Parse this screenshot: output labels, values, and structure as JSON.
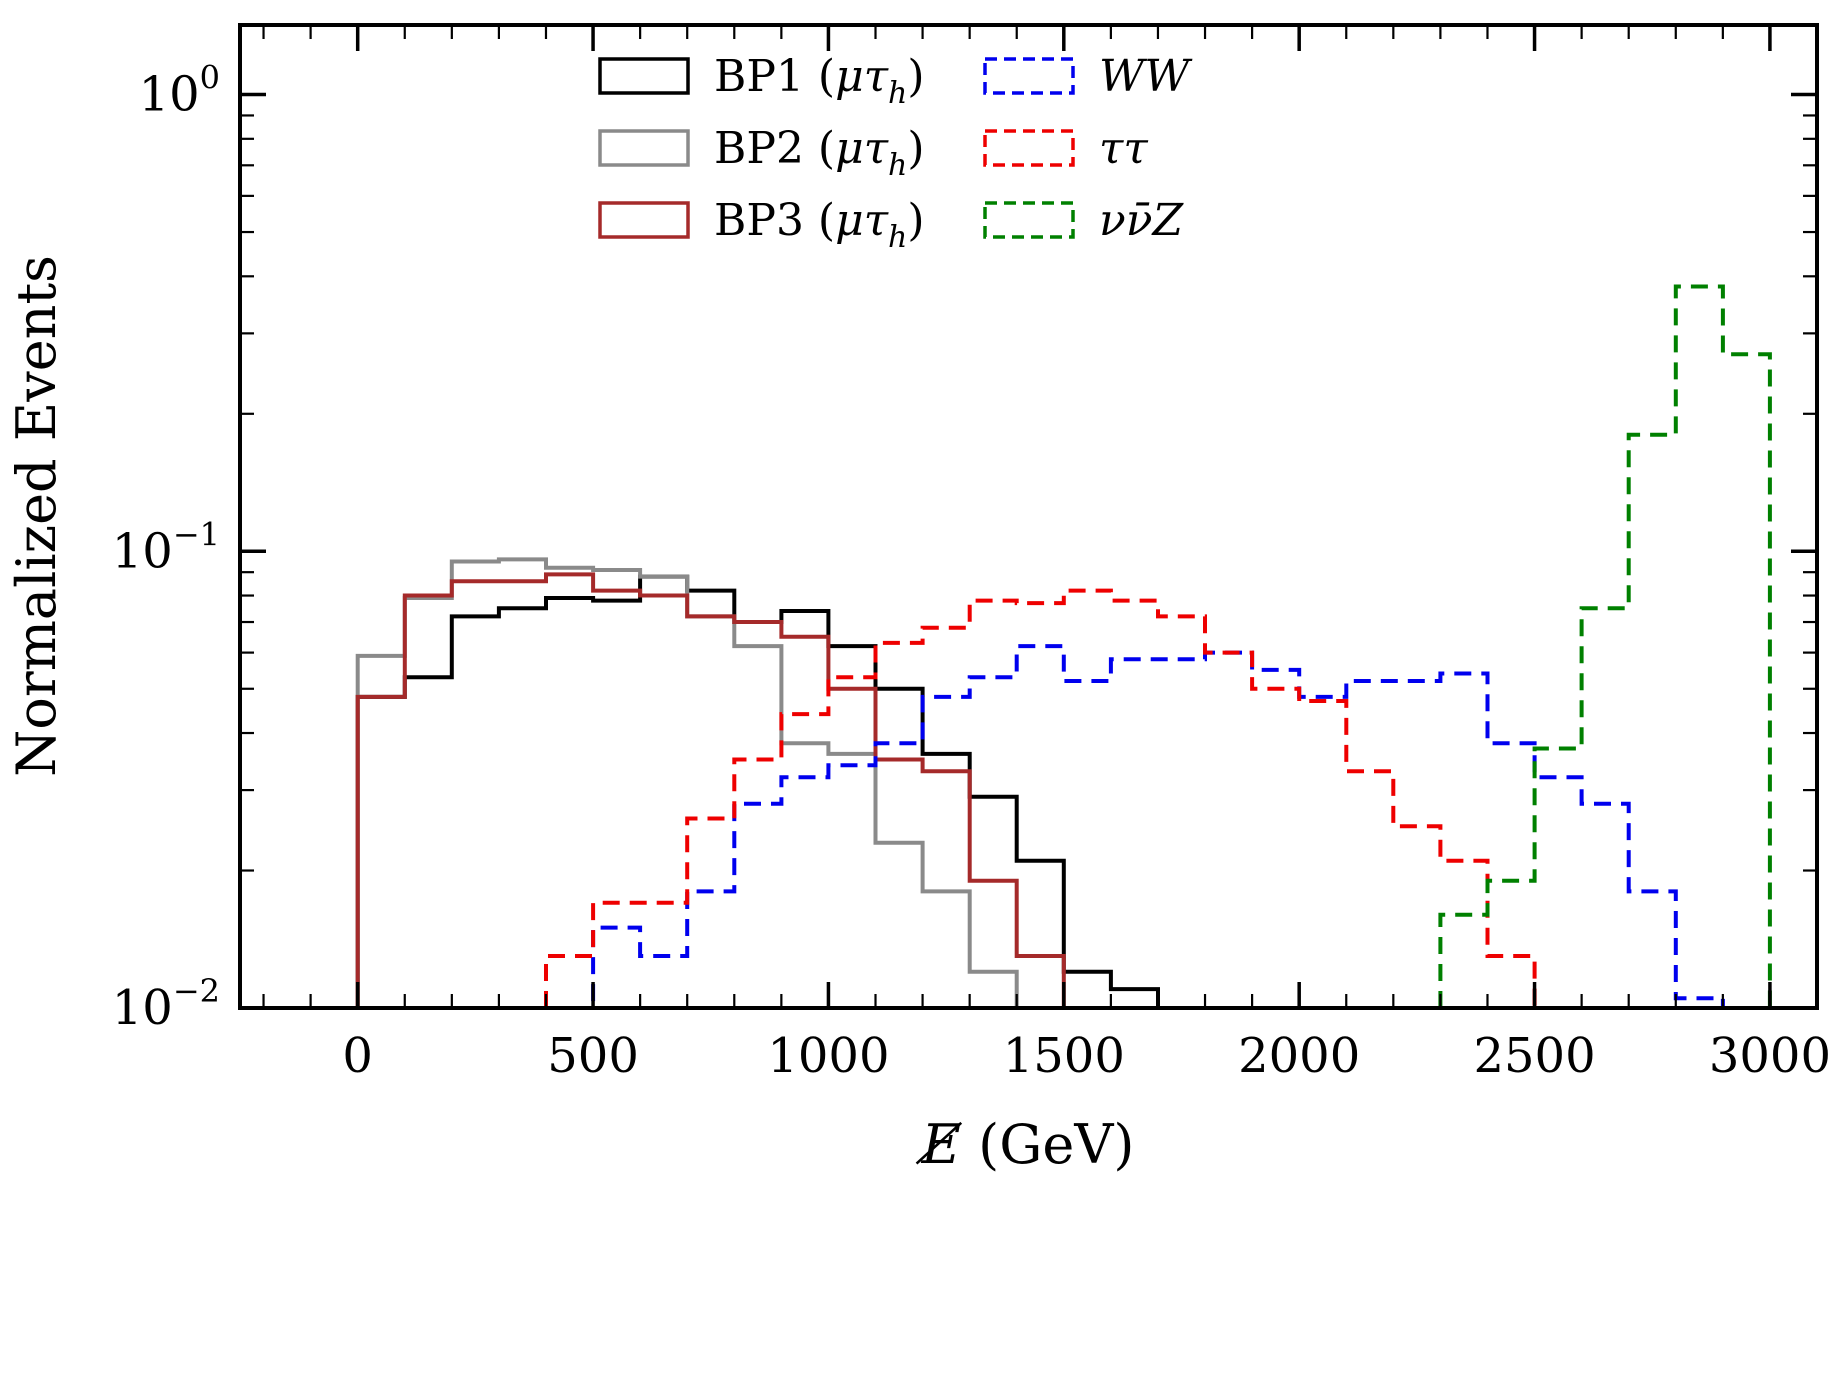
{
  "chart_data": {
    "type": "line",
    "line_style": "step-histogram",
    "title": "",
    "xlabel": "E̸ (GeV)",
    "ylabel": "Normalized Events",
    "x_scale": "linear",
    "y_scale": "log",
    "xlim": [
      -250,
      3100
    ],
    "ylim": [
      0.01,
      1.42
    ],
    "x_major_ticks": [
      0,
      500,
      1000,
      1500,
      2000,
      2500,
      3000
    ],
    "x_minor_step": 100,
    "y_major_ticks": [
      {
        "value": 1,
        "base": "10",
        "exp": "0"
      },
      {
        "value": 0.1,
        "base": "10",
        "exp": "−1"
      },
      {
        "value": 0.01,
        "base": "10",
        "exp": "−2"
      }
    ],
    "grid": false,
    "bin_width": 100,
    "colors": {
      "frame": "#000000",
      "background": "#ffffff"
    },
    "legend": {
      "position": "upper-center-inside",
      "columns": [
        [
          "BP1",
          "BP2",
          "BP3"
        ],
        [
          "WW",
          "tautau",
          "nunuZ"
        ]
      ]
    },
    "series": [
      {
        "key": "BP1",
        "label": "BP1 (μτ_h)",
        "color": "#000000",
        "line": "solid",
        "x_start": 0,
        "label_parts": [
          {
            "t": "BP1 ("
          },
          {
            "t": "μτ",
            "i": 1
          },
          {
            "t": "h",
            "i": 1,
            "sub": 1
          },
          {
            "t": ")"
          }
        ],
        "values": [
          0.048,
          0.053,
          0.072,
          0.075,
          0.079,
          0.078,
          0.088,
          0.082,
          0.07,
          0.074,
          0.062,
          0.05,
          0.036,
          0.029,
          0.021,
          0.012,
          0.011
        ]
      },
      {
        "key": "BP2",
        "label": "BP2 (μτ_h)",
        "color": "#8a8a8a",
        "line": "solid",
        "x_start": 0,
        "label_parts": [
          {
            "t": "BP2 ("
          },
          {
            "t": "μτ",
            "i": 1
          },
          {
            "t": "h",
            "i": 1,
            "sub": 1
          },
          {
            "t": ")"
          }
        ],
        "values": [
          0.059,
          0.079,
          0.095,
          0.096,
          0.092,
          0.091,
          0.088,
          0.072,
          0.062,
          0.038,
          0.036,
          0.023,
          0.018,
          0.012
        ]
      },
      {
        "key": "BP3",
        "label": "BP3 (μτ_h)",
        "color": "#a52a2a",
        "line": "solid",
        "x_start": 0,
        "label_parts": [
          {
            "t": "BP3 ("
          },
          {
            "t": "μτ",
            "i": 1
          },
          {
            "t": "h",
            "i": 1,
            "sub": 1
          },
          {
            "t": ")"
          }
        ],
        "values": [
          0.048,
          0.08,
          0.086,
          0.086,
          0.089,
          0.082,
          0.08,
          0.072,
          0.07,
          0.065,
          0.05,
          0.035,
          0.033,
          0.019,
          0.013
        ]
      },
      {
        "key": "WW",
        "label": "WW",
        "color": "#0000ee",
        "line": "dashed",
        "x_start": 400,
        "label_parts": [
          {
            "t": "WW",
            "i": 1
          }
        ],
        "values": [
          0.01,
          0.015,
          0.013,
          0.018,
          0.028,
          0.032,
          0.034,
          0.038,
          0.048,
          0.053,
          0.062,
          0.052,
          0.058,
          0.058,
          0.06,
          0.055,
          0.048,
          0.052,
          0.052,
          0.054,
          0.038,
          0.032,
          0.028,
          0.018,
          0.0105
        ]
      },
      {
        "key": "tautau",
        "label": "ττ",
        "color": "#ee0000",
        "line": "dashed",
        "x_start": 400,
        "label_parts": [
          {
            "t": "ττ",
            "i": 1
          }
        ],
        "values": [
          0.013,
          0.017,
          0.017,
          0.026,
          0.035,
          0.044,
          0.053,
          0.063,
          0.068,
          0.078,
          0.077,
          0.082,
          0.078,
          0.072,
          0.06,
          0.05,
          0.047,
          0.033,
          0.025,
          0.021,
          0.013,
          0.01
        ]
      },
      {
        "key": "nunuZ",
        "label": "νν̄Z",
        "color": "#008000",
        "line": "dashed",
        "x_start": 2300,
        "label_parts": [
          {
            "t": "νν̄Z",
            "i": 1
          }
        ],
        "values": [
          0.016,
          0.019,
          0.037,
          0.075,
          0.18,
          0.38,
          0.27
        ]
      }
    ]
  }
}
